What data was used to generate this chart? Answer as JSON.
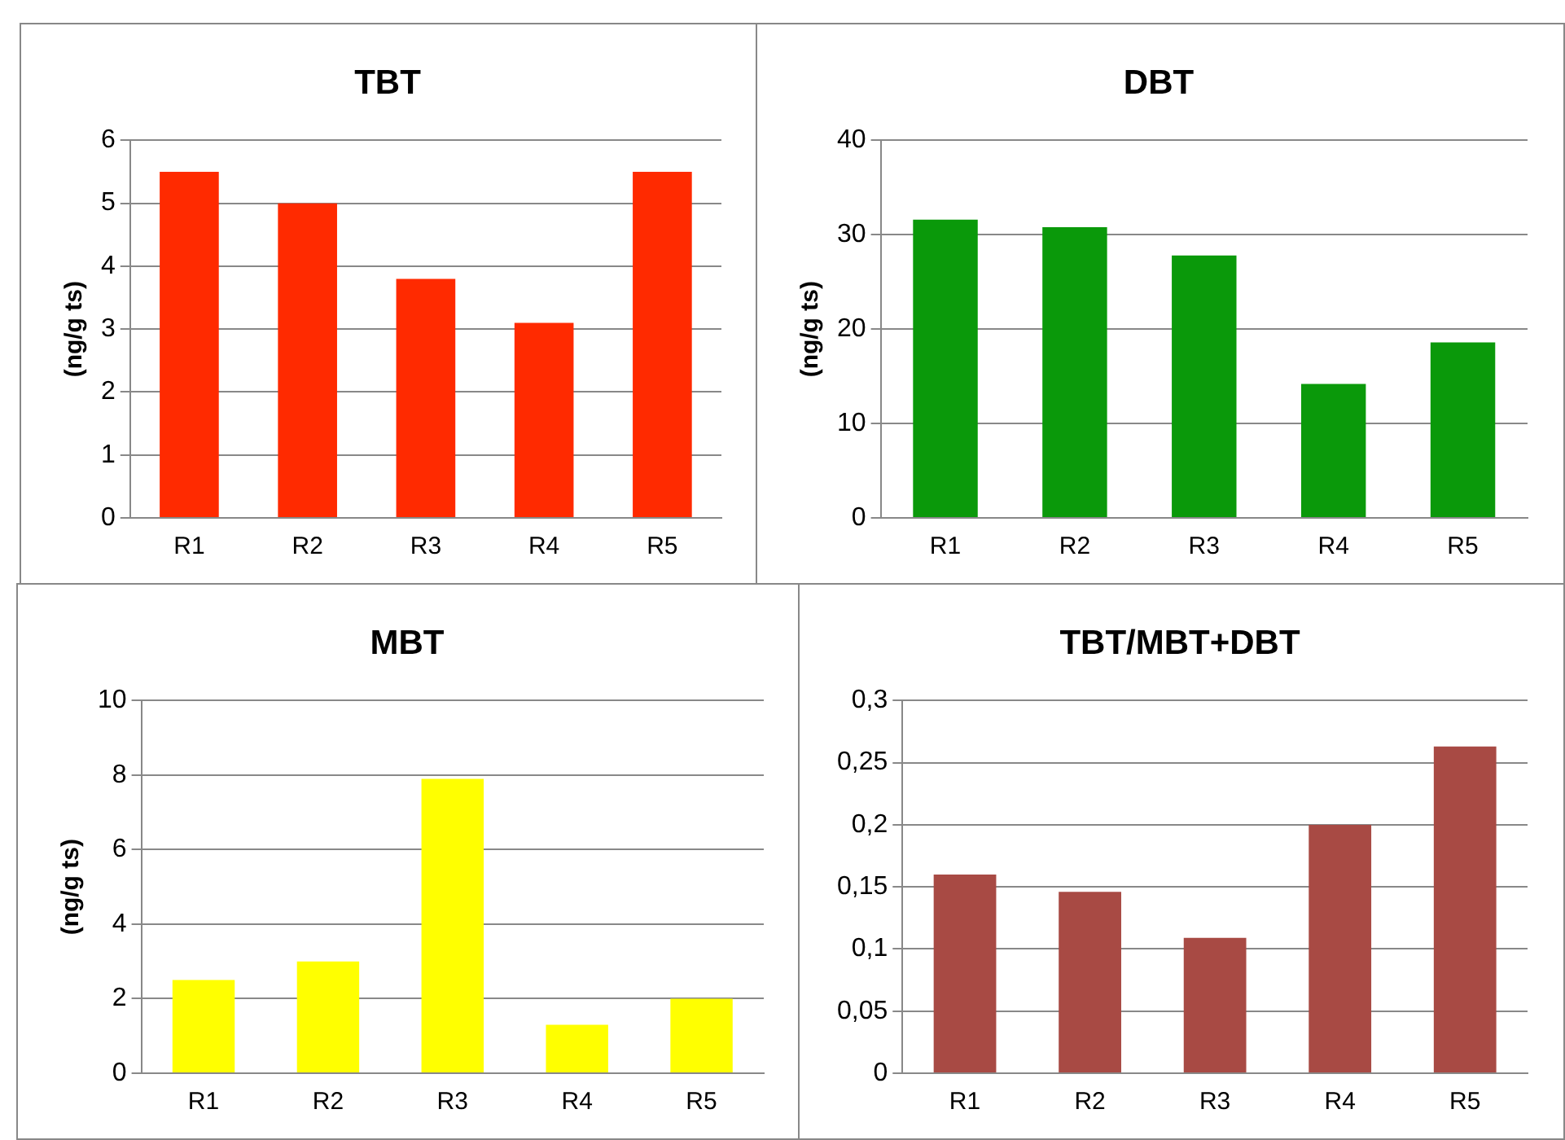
{
  "chart_data": [
    {
      "type": "bar",
      "title": "TBT",
      "ylabel": "(ng/g ts)",
      "categories": [
        "R1",
        "R2",
        "R3",
        "R4",
        "R5"
      ],
      "values": [
        5.5,
        5.0,
        3.8,
        3.1,
        5.5
      ],
      "color": "#ff2a00",
      "ylim": [
        0,
        6
      ],
      "yticks": [
        0,
        1,
        2,
        3,
        4,
        5,
        6
      ],
      "grid": "y"
    },
    {
      "type": "bar",
      "title": "DBT",
      "ylabel": "(ng/g ts)",
      "categories": [
        "R1",
        "R2",
        "R3",
        "R4",
        "R5"
      ],
      "values": [
        31.6,
        30.8,
        27.8,
        14.2,
        18.6
      ],
      "color": "#0a990a",
      "ylim": [
        0,
        40
      ],
      "yticks": [
        0,
        10,
        20,
        30,
        40
      ],
      "grid": "y"
    },
    {
      "type": "bar",
      "title": "MBT",
      "ylabel": "(ng/g ts)",
      "categories": [
        "R1",
        "R2",
        "R3",
        "R4",
        "R5"
      ],
      "values": [
        2.5,
        3.0,
        7.9,
        1.3,
        2.0
      ],
      "color": "#ffff00",
      "ylim": [
        0,
        10
      ],
      "yticks": [
        0,
        2,
        4,
        6,
        8,
        10
      ],
      "grid": "y"
    },
    {
      "type": "bar",
      "title": "TBT/MBT+DBT",
      "categories": [
        "R1",
        "R2",
        "R3",
        "R4",
        "R5"
      ],
      "values": [
        0.16,
        0.146,
        0.109,
        0.2,
        0.263
      ],
      "color": "#a84a44",
      "ylim": [
        0,
        0.3
      ],
      "yticks": [
        0,
        {
          "value": 0.05,
          "label": "0,05"
        },
        {
          "value": 0.1,
          "label": "0,1"
        },
        {
          "value": 0.15,
          "label": "0,15"
        },
        {
          "value": 0.2,
          "label": "0,2"
        },
        {
          "value": 0.25,
          "label": "0,25"
        },
        {
          "value": 0.3,
          "label": "0,3"
        }
      ],
      "grid": "y"
    }
  ]
}
